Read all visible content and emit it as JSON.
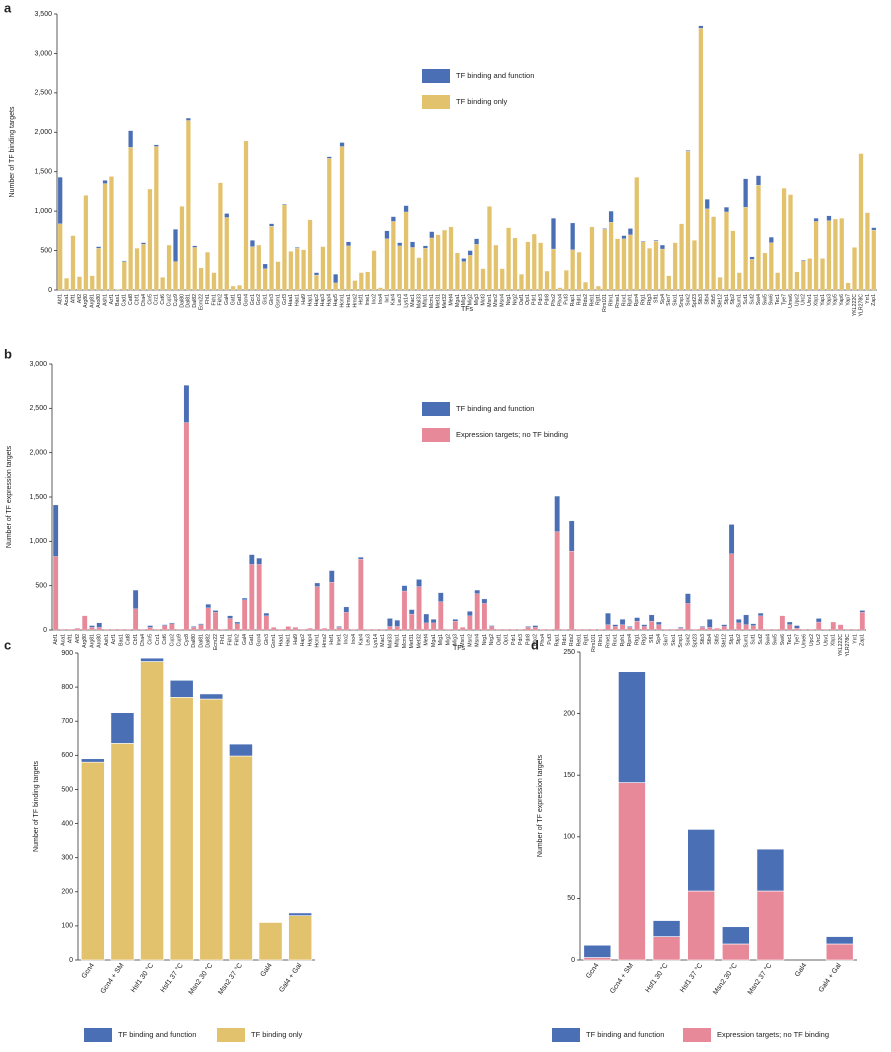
{
  "chart_data": [
    {
      "panel": "a",
      "type": "bar",
      "stacked": true,
      "y_label": "Number of TF binding targets",
      "x_label": "TFs",
      "categories": [
        "Abf1",
        "Aca1",
        "Aft1",
        "Aft2",
        "Arg80",
        "Arg81",
        "Aro80",
        "Ash1",
        "Azf1",
        "Bas1",
        "Cad1",
        "Cat8",
        "Cbf1",
        "Cha4",
        "Cin5",
        "Crz1",
        "Cst6",
        "Cup2",
        "Cup9",
        "Dal80",
        "Dal81",
        "Dal82",
        "Ecm22",
        "Fhl1",
        "Fkh1",
        "Fkh2",
        "Gal4",
        "Gat1",
        "Gat3",
        "Gcn4",
        "Gcr1",
        "Gcr2",
        "Gis1",
        "Gln3",
        "Gsm1",
        "Gzf3",
        "Haa1",
        "Hac1",
        "Hal9",
        "Hap1",
        "Hap2",
        "Hap3",
        "Hap4",
        "Hap5",
        "Hcm1",
        "Hms1",
        "Hms2",
        "Hsf1",
        "Ime1",
        "Ino2",
        "Ino4",
        "Ixr1",
        "Kar4",
        "Leu3",
        "Lys14",
        "Mac1",
        "Mal33",
        "Mbp1",
        "Mcm1",
        "Met31",
        "Met32",
        "Met4",
        "Mga1",
        "Mig1",
        "Mig2",
        "Mig3",
        "Mot3",
        "Msn1",
        "Msn2",
        "Msn4",
        "Nrg1",
        "Nrg2",
        "Oaf1",
        "Opi1",
        "Pdr1",
        "Pdr3",
        "Pdr8",
        "Pho2",
        "Pho4",
        "Put3",
        "Rap1",
        "Rdr1",
        "Rds2",
        "Reb1",
        "Rgt1",
        "Rim101",
        "Rlm1",
        "Rme1",
        "Rox1",
        "Rph1",
        "Rpn4",
        "Rtg1",
        "Rtg3",
        "Sfl1",
        "Sip4",
        "Skn7",
        "Sko1",
        "Smp1",
        "Sok2",
        "Spt23",
        "Stb3",
        "Stb4",
        "Stb5",
        "Ste12",
        "Stp1",
        "Stp2",
        "Sum1",
        "Sut1",
        "Sut2",
        "Swi4",
        "Swi5",
        "Swi6",
        "Tec1",
        "Tye7",
        "Ume6",
        "Upc2",
        "Urc2",
        "Usv1",
        "Xbp1",
        "Yap1",
        "Yap3",
        "Yap5",
        "Yap6",
        "Yap7",
        "YKL222C",
        "YLR278C",
        "Yrr1",
        "Zap1"
      ],
      "series": [
        {
          "name": "TF binding and function",
          "color": "#4b6fb5",
          "values": [
            590,
            0,
            0,
            0,
            0,
            0,
            20,
            40,
            0,
            0,
            10,
            210,
            0,
            20,
            0,
            20,
            0,
            0,
            410,
            0,
            30,
            20,
            0,
            0,
            0,
            0,
            50,
            0,
            0,
            0,
            80,
            0,
            60,
            30,
            0,
            10,
            0,
            10,
            0,
            0,
            30,
            0,
            20,
            110,
            50,
            50,
            0,
            0,
            0,
            0,
            0,
            100,
            60,
            40,
            80,
            70,
            0,
            30,
            80,
            0,
            0,
            0,
            0,
            40,
            60,
            70,
            0,
            0,
            0,
            0,
            0,
            0,
            0,
            0,
            0,
            0,
            0,
            390,
            0,
            0,
            340,
            0,
            0,
            0,
            0,
            10,
            140,
            0,
            40,
            80,
            0,
            10,
            0,
            10,
            50,
            0,
            0,
            0,
            10,
            0,
            30,
            120,
            0,
            0,
            60,
            0,
            0,
            360,
            30,
            120,
            0,
            70,
            0,
            0,
            0,
            0,
            10,
            0,
            40,
            0,
            60,
            0,
            0,
            0,
            0,
            0,
            0,
            30
          ]
        },
        {
          "name": "TF binding only",
          "color": "#e3c26e",
          "values": [
            840,
            150,
            690,
            170,
            1200,
            180,
            530,
            1350,
            1440,
            10,
            360,
            1810,
            530,
            580,
            1280,
            1820,
            160,
            570,
            360,
            1060,
            2150,
            540,
            280,
            480,
            220,
            1360,
            920,
            50,
            60,
            1890,
            550,
            570,
            270,
            810,
            360,
            1080,
            490,
            530,
            510,
            890,
            190,
            550,
            1670,
            90,
            1820,
            560,
            120,
            220,
            230,
            500,
            30,
            650,
            870,
            560,
            990,
            540,
            410,
            530,
            660,
            700,
            760,
            800,
            470,
            360,
            440,
            580,
            270,
            1060,
            570,
            270,
            790,
            660,
            200,
            610,
            710,
            600,
            240,
            520,
            30,
            250,
            510,
            480,
            100,
            800,
            50,
            770,
            860,
            650,
            650,
            700,
            1430,
            610,
            530,
            620,
            520,
            180,
            600,
            840,
            1760,
            630,
            3320,
            1030,
            930,
            160,
            990,
            750,
            220,
            1050,
            390,
            1330,
            470,
            600,
            220,
            1290,
            1210,
            230,
            370,
            400,
            870,
            400,
            880,
            900,
            910,
            90,
            540,
            1730,
            980,
            760
          ]
        }
      ],
      "ylim": [
        0,
        3500
      ],
      "yticks": [
        0,
        500,
        {
          "value": 1000,
          "label": "1,000"
        },
        {
          "value": 1500,
          "label": "1,500"
        },
        {
          "value": 2000,
          "label": "2,000"
        },
        {
          "value": 2500,
          "label": "2,500"
        },
        {
          "value": 3000,
          "label": "3,000"
        },
        {
          "value": 3500,
          "label": "3,500"
        }
      ]
    },
    {
      "panel": "b",
      "type": "bar",
      "stacked": true,
      "y_label": "Number of TF expression targets",
      "x_label": "TFs",
      "categories": [
        "Abf1",
        "Aca1",
        "Aft1",
        "Aft2",
        "Arg80",
        "Arg81",
        "Aro80",
        "Ash1",
        "Azf1",
        "Bas1",
        "Cat8",
        "Cbf1",
        "Cha4",
        "Cin5",
        "Crz1",
        "Cst6",
        "Cup2",
        "Cup9",
        "Cyc8",
        "Dal80",
        "Dal81",
        "Dal82",
        "Ecm22",
        "Fhl1",
        "Fkh1",
        "Fkh2",
        "Gal4",
        "Gat1",
        "Gcn4",
        "Gln3",
        "Gsm1",
        "Haa1",
        "Hac1",
        "Hal9",
        "Hap2",
        "Hap4",
        "Hcm1",
        "Hms2",
        "Hsf1",
        "Ime1",
        "Ino2",
        "Ino4",
        "Kar4",
        "Leu3",
        "Lys14",
        "Mac1",
        "Mal33",
        "Mbp1",
        "Mcm1",
        "Met31",
        "Met32",
        "Met4",
        "Mga1",
        "Mig1",
        "Mig2",
        "Mig3",
        "Msn1",
        "Msn2",
        "Msn4",
        "Nrg1",
        "Nrg2",
        "Oaf1",
        "Opi1",
        "Pdr1",
        "Pdr3",
        "Pdr8",
        "Pho2",
        "Pho4",
        "Put3",
        "Rap1",
        "Rdr1",
        "Rds2",
        "Reb1",
        "Rgt1",
        "Rim101",
        "Rlm1",
        "Rme1",
        "Rox1",
        "Rph1",
        "Rpn4",
        "Rtg1",
        "Rtg3",
        "Sfl1",
        "Sip4",
        "Skn7",
        "Sko1",
        "Smp1",
        "Sok2",
        "Spt23",
        "Stb3",
        "Stb4",
        "Stb5",
        "Ste12",
        "Stp1",
        "Stp2",
        "Sum1",
        "Sut1",
        "Sut2",
        "Swi4",
        "Swi5",
        "Swi6",
        "Tec1",
        "Tye7",
        "Ume6",
        "Upc2",
        "Urc2",
        "Usv1",
        "Xbp1",
        "YKL222C",
        "YLR278C",
        "Yrr1",
        "Zap1"
      ],
      "series": [
        {
          "name": "TF binding and function",
          "color": "#4b6fb5",
          "values": [
            580,
            0,
            0,
            0,
            0,
            20,
            50,
            0,
            0,
            0,
            0,
            210,
            0,
            20,
            0,
            10,
            10,
            0,
            420,
            10,
            10,
            40,
            20,
            0,
            30,
            20,
            20,
            110,
            70,
            30,
            0,
            0,
            0,
            0,
            0,
            0,
            40,
            0,
            130,
            10,
            60,
            0,
            20,
            0,
            0,
            0,
            90,
            70,
            60,
            50,
            80,
            100,
            40,
            100,
            0,
            20,
            0,
            50,
            40,
            50,
            10,
            0,
            0,
            0,
            0,
            10,
            20,
            0,
            0,
            400,
            0,
            340,
            0,
            0,
            0,
            0,
            130,
            20,
            60,
            10,
            40,
            20,
            70,
            30,
            0,
            0,
            10,
            110,
            0,
            10,
            90,
            0,
            20,
            330,
            40,
            110,
            20,
            30,
            0,
            0,
            0,
            30,
            30,
            0,
            0,
            40,
            0,
            0,
            0,
            0,
            0,
            20
          ]
        },
        {
          "name": "Expression targets; no TF binding",
          "color": "#e8899a",
          "values": [
            830,
            10,
            10,
            20,
            160,
            30,
            30,
            10,
            10,
            10,
            10,
            240,
            10,
            30,
            10,
            50,
            70,
            10,
            2340,
            30,
            60,
            250,
            200,
            10,
            130,
            70,
            340,
            740,
            740,
            160,
            30,
            10,
            40,
            30,
            10,
            20,
            490,
            20,
            540,
            30,
            200,
            10,
            800,
            10,
            10,
            10,
            40,
            40,
            440,
            180,
            490,
            80,
            80,
            320,
            10,
            100,
            30,
            160,
            410,
            300,
            40,
            10,
            10,
            10,
            10,
            30,
            30,
            10,
            10,
            1110,
            10,
            890,
            10,
            10,
            10,
            10,
            60,
            40,
            60,
            30,
            100,
            40,
            100,
            60,
            10,
            10,
            20,
            300,
            10,
            30,
            30,
            20,
            40,
            860,
            80,
            60,
            50,
            160,
            10,
            10,
            160,
            60,
            20,
            10,
            10,
            90,
            10,
            90,
            60,
            10,
            10,
            200
          ]
        }
      ],
      "ylim": [
        0,
        3000
      ],
      "yticks": [
        0,
        500,
        {
          "value": 1000,
          "label": "1,000"
        },
        {
          "value": 1500,
          "label": "1,500"
        },
        {
          "value": 2000,
          "label": "2,000"
        },
        {
          "value": 2500,
          "label": "2,500"
        },
        {
          "value": 3000,
          "label": "3,000"
        }
      ]
    },
    {
      "panel": "c",
      "type": "bar",
      "stacked": true,
      "y_label": "Number of TF binding targets",
      "categories": [
        "Gcn4",
        "Gcn4 + SM",
        "Hsf1 30 °C",
        "Hsf1 37 °C",
        "Msn2 30 °C",
        "Msn2 37 °C",
        "Gal4",
        "Gal4 + Gal"
      ],
      "series": [
        {
          "name": "TF binding and function",
          "color": "#4b6fb5",
          "values": [
            10,
            90,
            10,
            50,
            15,
            35,
            0,
            8
          ]
        },
        {
          "name": "TF binding only",
          "color": "#e3c26e",
          "values": [
            580,
            635,
            875,
            770,
            765,
            598,
            110,
            130
          ]
        }
      ],
      "ylim": [
        0,
        900
      ],
      "yticks": [
        0,
        100,
        200,
        300,
        400,
        500,
        600,
        700,
        800,
        900
      ]
    },
    {
      "panel": "d",
      "type": "bar",
      "stacked": true,
      "y_label": "Number of TF expression targets",
      "categories": [
        "Gcn4",
        "Gcn4 + SM",
        "Hsf1 30 °C",
        "Hsf1 37 °C",
        "Msn2 30 °C",
        "Msn2 37 °C",
        "Gal4",
        "Gal4 + Gal"
      ],
      "series": [
        {
          "name": "TF binding and function",
          "color": "#4b6fb5",
          "values": [
            10,
            90,
            13,
            50,
            14,
            34,
            0,
            6
          ]
        },
        {
          "name": "Expression targets; no TF binding",
          "color": "#e8899a",
          "values": [
            2,
            144,
            19,
            56,
            13,
            56,
            0,
            13
          ]
        }
      ],
      "ylim": [
        0,
        250
      ],
      "yticks": [
        0,
        50,
        100,
        150,
        200,
        250
      ]
    }
  ]
}
